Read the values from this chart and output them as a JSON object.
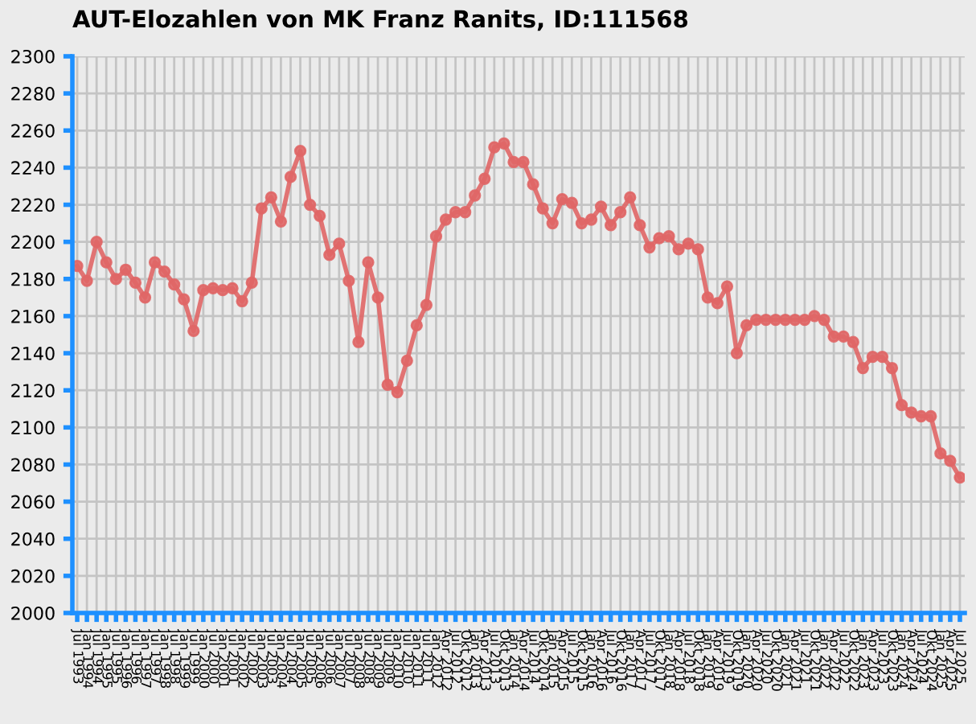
{
  "chart_data": {
    "type": "line",
    "title": "AUT-Elozahlen von MK Franz Ranits, ID:111568",
    "categories": [
      "Jul 1993",
      "Jan 1994",
      "Jul 1994",
      "Jan 1995",
      "Jul 1995",
      "Jan 1996",
      "Jul 1996",
      "Jan 1997",
      "Jul 1997",
      "Jan 1998",
      "Jul 1998",
      "Jan 1999",
      "Jul 1999",
      "Jan 2000",
      "Jul 2000",
      "Jan 2001",
      "Jul 2001",
      "Jan 2002",
      "Jul 2002",
      "Jan 2003",
      "Jul 2003",
      "Jan 2004",
      "Jul 2004",
      "Jan 2005",
      "Jul 2005",
      "Jan 2006",
      "Jul 2006",
      "Jan 2007",
      "Jul 2007",
      "Jan 2008",
      "Jul 2008",
      "Jan 2009",
      "Jul 2009",
      "Jan 2010",
      "Jul 2010",
      "Jan 2011",
      "Jul 2011",
      "Jan 2012",
      "Apr 2012",
      "Jul 2012",
      "Okt 2012",
      "Jan 2013",
      "Apr 2013",
      "Jul 2013",
      "Okt 2013",
      "Jan 2014",
      "Apr 2014",
      "Jul 2014",
      "Okt 2014",
      "Jan 2015",
      "Apr 2015",
      "Jul 2015",
      "Okt 2015",
      "Jan 2016",
      "Apr 2016",
      "Jul 2016",
      "Okt 2016",
      "Jan 2017",
      "Apr 2017",
      "Jul 2017",
      "Okt 2017",
      "Jan 2018",
      "Apr 2018",
      "Jul 2018",
      "Okt 2018",
      "Jan 2019",
      "Apr 2019",
      "Jul 2019",
      "Okt 2019",
      "Jan 2020",
      "Apr 2020",
      "Jul 2020",
      "Okt 2020",
      "Jan 2021",
      "Apr 2021",
      "Jul 2021",
      "Okt 2021",
      "Jan 2022",
      "Apr 2022",
      "Jul 2022",
      "Okt 2022",
      "Jan 2023",
      "Apr 2023",
      "Jul 2023",
      "Okt 2023",
      "Jan 2024",
      "Apr 2024",
      "Jul 2024",
      "Okt 2024",
      "Jan 2025",
      "Apr 2025",
      "Jul 2025"
    ],
    "series": [
      {
        "color": "#e06666",
        "values": [
          2187,
          2179,
          2200,
          2189,
          2180,
          2185,
          2178,
          2170,
          2189,
          2184,
          2177,
          2169,
          2152,
          2174,
          2175,
          2174,
          2175,
          2168,
          2178,
          2218,
          2224,
          2211,
          2235,
          2249,
          2220,
          2214,
          2193,
          2199,
          2179,
          2146,
          2189,
          2170,
          2123,
          2119,
          2136,
          2155,
          2166,
          2203,
          2212,
          2216,
          2216,
          2225,
          2234,
          2251,
          2253,
          2243,
          2243,
          2231,
          2218,
          2210,
          2223,
          2221,
          2210,
          2212,
          2219,
          2209,
          2216,
          2224,
          2209,
          2197,
          2202,
          2203,
          2196,
          2199,
          2196,
          2170,
          2167,
          2176,
          2140,
          2155,
          2158,
          2158,
          2158,
          2158,
          2158,
          2158,
          2160,
          2158,
          2149,
          2149,
          2146,
          2132,
          2138,
          2138,
          2132,
          2112,
          2108,
          2106,
          2106,
          2086,
          2082,
          2073
        ]
      }
    ],
    "ylim": [
      2000,
      2300
    ],
    "yticks": [
      2000,
      2020,
      2040,
      2060,
      2080,
      2100,
      2120,
      2140,
      2160,
      2180,
      2200,
      2220,
      2240,
      2260,
      2280,
      2300
    ],
    "grid": true,
    "marker": "circle",
    "line_style": "solid"
  }
}
